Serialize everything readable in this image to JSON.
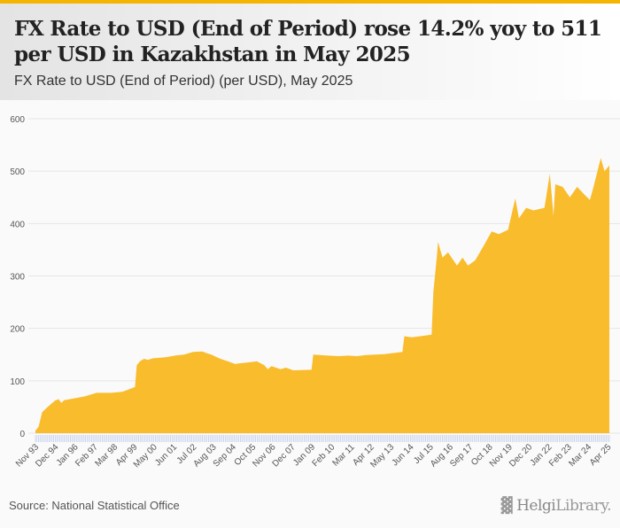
{
  "header": {
    "title": "FX Rate to USD (End of Period) rose 14.2% yoy to 511 per USD in Kazakhstan in May 2025",
    "subtitle": "FX Rate to USD (End of Period) (per USD), May 2025"
  },
  "footer": {
    "source": "Source: National Statistical Office",
    "logo_a": "Helgi",
    "logo_b": "Library."
  },
  "colors": {
    "area": "#f9bc2c",
    "accent": "#f5b400",
    "ticks": "#c4d0ea"
  },
  "chart_data": {
    "type": "area",
    "title": "FX Rate to USD (End of Period) (per USD), May 2025",
    "xlabel": "",
    "ylabel": "per USD",
    "ylim": [
      0,
      600
    ],
    "yticks": [
      0,
      100,
      200,
      300,
      400,
      500,
      600
    ],
    "grid": true,
    "x_start": 1993.83,
    "x_end": 2025.37,
    "xtick_labels": [
      "Nov 93",
      "Dec 94",
      "Jan 96",
      "Feb 97",
      "Mar 98",
      "Apr 99",
      "May 00",
      "Jun 01",
      "Jul 02",
      "Aug 03",
      "Sep 04",
      "Oct 05",
      "Nov 06",
      "Dec 07",
      "Jan 09",
      "Feb 10",
      "Mar 11",
      "Apr 12",
      "May 13",
      "Jun 14",
      "Jul 15",
      "Aug 16",
      "Sep 17",
      "Oct 18",
      "Nov 19",
      "Dec 20",
      "Jan 22",
      "Feb 23",
      "Mar 24",
      "Apr 25"
    ],
    "points": [
      [
        1993.83,
        5
      ],
      [
        1994.0,
        12
      ],
      [
        1994.2,
        40
      ],
      [
        1994.5,
        50
      ],
      [
        1994.9,
        62
      ],
      [
        1995.1,
        65
      ],
      [
        1995.25,
        58
      ],
      [
        1995.4,
        63
      ],
      [
        1995.9,
        66
      ],
      [
        1996.5,
        70
      ],
      [
        1997.0,
        75
      ],
      [
        1997.2,
        77
      ],
      [
        1998.0,
        77
      ],
      [
        1998.6,
        79
      ],
      [
        1999.0,
        84
      ],
      [
        1999.3,
        88
      ],
      [
        1999.4,
        130
      ],
      [
        1999.6,
        138
      ],
      [
        1999.8,
        142
      ],
      [
        2000.0,
        140
      ],
      [
        2000.3,
        143
      ],
      [
        2001.0,
        145
      ],
      [
        2001.5,
        148
      ],
      [
        2002.0,
        150
      ],
      [
        2002.5,
        155
      ],
      [
        2003.0,
        156
      ],
      [
        2003.3,
        152
      ],
      [
        2003.5,
        150
      ],
      [
        2003.8,
        145
      ],
      [
        2004.0,
        142
      ],
      [
        2004.5,
        136
      ],
      [
        2004.8,
        132
      ],
      [
        2005.0,
        133
      ],
      [
        2005.5,
        135
      ],
      [
        2006.0,
        137
      ],
      [
        2006.4,
        130
      ],
      [
        2006.6,
        122
      ],
      [
        2006.8,
        128
      ],
      [
        2007.3,
        122
      ],
      [
        2007.6,
        125
      ],
      [
        2008.0,
        120
      ],
      [
        2009.0,
        121
      ],
      [
        2009.1,
        150
      ],
      [
        2009.9,
        148
      ],
      [
        2010.5,
        147
      ],
      [
        2011.0,
        148
      ],
      [
        2011.5,
        147
      ],
      [
        2012.0,
        149
      ],
      [
        2013.0,
        151
      ],
      [
        2014.0,
        155
      ],
      [
        2014.1,
        185
      ],
      [
        2014.5,
        183
      ],
      [
        2015.0,
        185
      ],
      [
        2015.6,
        188
      ],
      [
        2015.7,
        270
      ],
      [
        2015.9,
        340
      ],
      [
        2015.95,
        365
      ],
      [
        2016.2,
        335
      ],
      [
        2016.5,
        345
      ],
      [
        2016.8,
        330
      ],
      [
        2017.0,
        320
      ],
      [
        2017.3,
        335
      ],
      [
        2017.6,
        320
      ],
      [
        2018.0,
        330
      ],
      [
        2018.5,
        360
      ],
      [
        2018.9,
        385
      ],
      [
        2019.3,
        380
      ],
      [
        2019.8,
        388
      ],
      [
        2020.2,
        448
      ],
      [
        2020.4,
        410
      ],
      [
        2020.8,
        430
      ],
      [
        2021.2,
        425
      ],
      [
        2021.8,
        430
      ],
      [
        2022.1,
        495
      ],
      [
        2022.3,
        415
      ],
      [
        2022.4,
        475
      ],
      [
        2022.8,
        470
      ],
      [
        2023.2,
        450
      ],
      [
        2023.6,
        470
      ],
      [
        2024.0,
        455
      ],
      [
        2024.3,
        445
      ],
      [
        2024.5,
        470
      ],
      [
        2024.9,
        525
      ],
      [
        2025.1,
        500
      ],
      [
        2025.37,
        511
      ]
    ]
  }
}
